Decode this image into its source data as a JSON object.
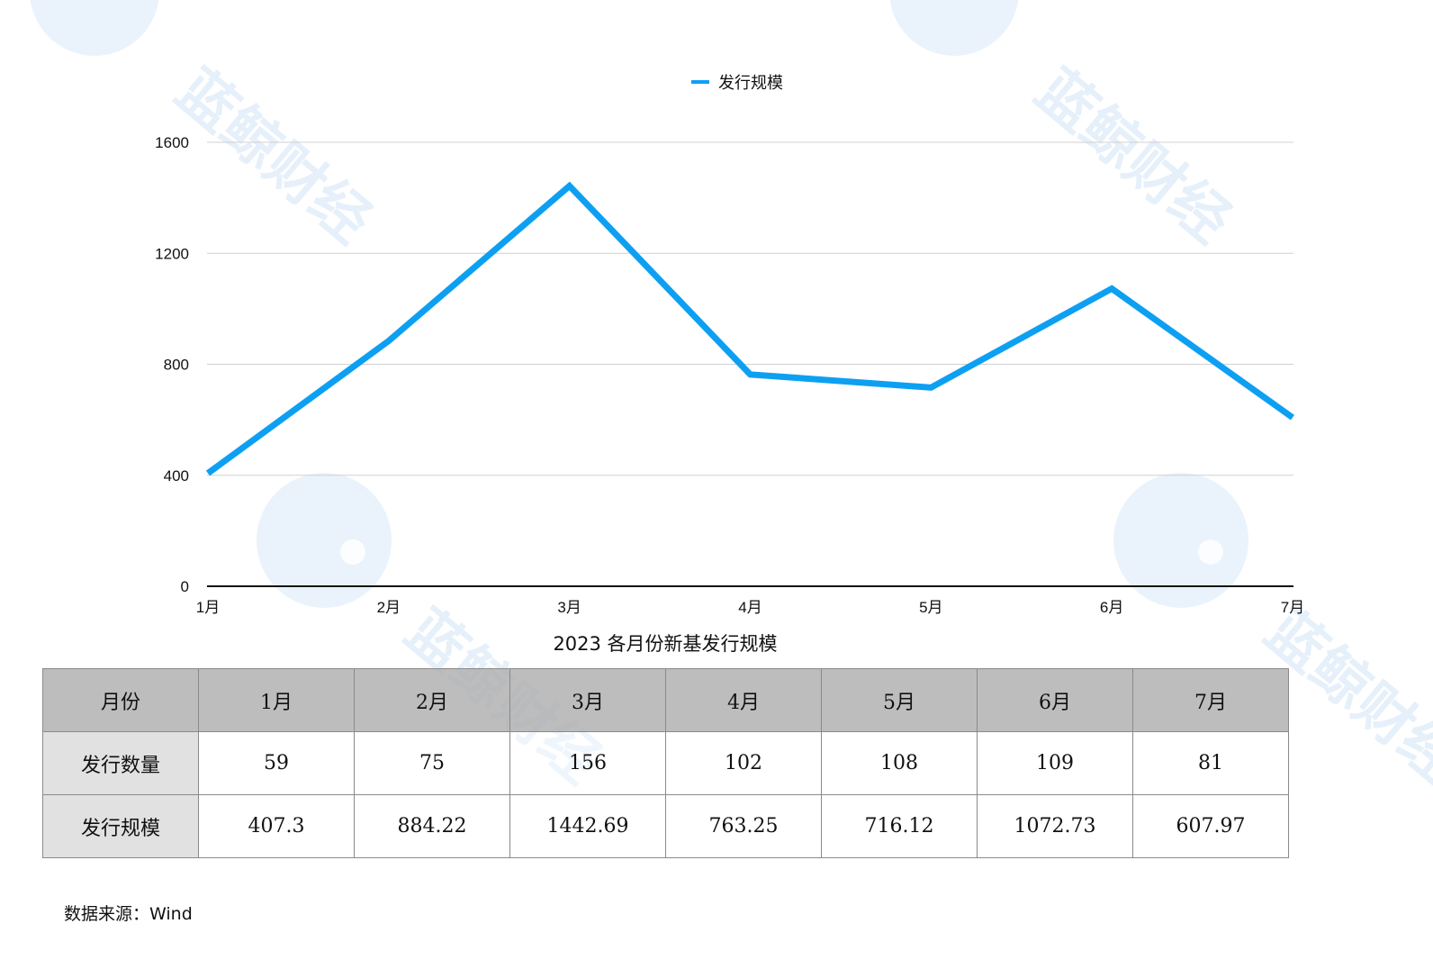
{
  "chart_data": {
    "type": "line",
    "title": "2023 各月份新基发行规模",
    "categories": [
      "1月",
      "2月",
      "3月",
      "4月",
      "5月",
      "6月",
      "7月"
    ],
    "series": [
      {
        "name": "发行规模",
        "values": [
          407.3,
          884.22,
          1442.69,
          763.25,
          716.12,
          1072.73,
          607.97
        ],
        "color": "#0da0f2"
      }
    ],
    "ylim": [
      0,
      1600
    ],
    "yticks": [
      0,
      400,
      800,
      1200,
      1600
    ],
    "grid": true,
    "legend_position": "top-center"
  },
  "table": {
    "header_label": "月份",
    "months": [
      "1月",
      "2月",
      "3月",
      "4月",
      "5月",
      "6月",
      "7月"
    ],
    "rows": [
      {
        "label": "发行数量",
        "values": [
          "59",
          "75",
          "156",
          "102",
          "108",
          "109",
          "81"
        ]
      },
      {
        "label": "发行规模",
        "values": [
          "407.3",
          "884.22",
          "1442.69",
          "763.25",
          "716.12",
          "1072.73",
          "607.97"
        ]
      }
    ]
  },
  "watermark_text": "蓝鲸财经",
  "source_text": "数据来源：Wind"
}
